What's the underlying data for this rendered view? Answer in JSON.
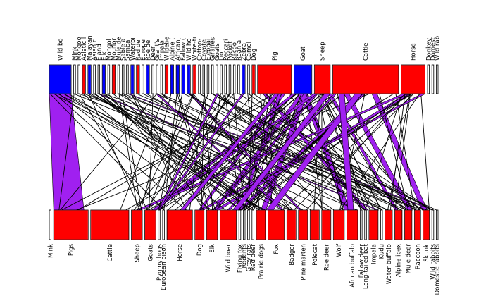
{
  "chart_data": {
    "type": "bipartite-network",
    "title": "",
    "colors": {
      "filled": "#ff0000",
      "highlight": "#0000ff",
      "link_highlight": "#a020f0",
      "edge": "#000000"
    },
    "top_nodes": [
      {
        "label": "Wild bo",
        "weight": 5,
        "color": "#0000ff"
      },
      {
        "label": "Mink",
        "weight": 0,
        "color": ""
      },
      {
        "label": "Mongoo",
        "weight": 0,
        "color": ""
      },
      {
        "label": "Asiatic l",
        "weight": 0.3,
        "color": "#ff0000"
      },
      {
        "label": "Malayan",
        "weight": 0.3,
        "color": "#0000ff"
      },
      {
        "label": "Asian r",
        "weight": 0,
        "color": ""
      },
      {
        "label": "Eland",
        "weight": 0,
        "color": ""
      },
      {
        "label": "Elk",
        "weight": 0.3,
        "color": "#0000ff"
      },
      {
        "label": "Mongol",
        "weight": 0,
        "color": ""
      },
      {
        "label": "Mouflor",
        "weight": 0.3,
        "color": "#ff0000"
      },
      {
        "label": "Mule de",
        "weight": 0,
        "color": ""
      },
      {
        "label": "Sable a",
        "weight": 0,
        "color": ""
      },
      {
        "label": "Sambai",
        "weight": 0,
        "color": ""
      },
      {
        "label": "Waterbi",
        "weight": 0.3,
        "color": "#0000ff"
      },
      {
        "label": "Red de",
        "weight": 0.3,
        "color": "#ff0000"
      },
      {
        "label": "Europe",
        "weight": 0,
        "color": ""
      },
      {
        "label": "Roe de",
        "weight": 0.3,
        "color": "#0000ff"
      },
      {
        "label": "Deer",
        "weight": 0,
        "color": ""
      },
      {
        "label": "Grant's",
        "weight": 0,
        "color": ""
      },
      {
        "label": "Impala",
        "weight": 0,
        "color": ""
      },
      {
        "label": "Wildebe",
        "weight": 0.3,
        "color": "#ff0000"
      },
      {
        "label": "Alpine (",
        "weight": 0.3,
        "color": "#0000ff"
      },
      {
        "label": "African",
        "weight": 0.3,
        "color": "#0000ff"
      },
      {
        "label": "Fallow (",
        "weight": 0.3,
        "color": "#0000ff"
      },
      {
        "label": "Wild ho",
        "weight": 0.3,
        "color": "#0000ff"
      },
      {
        "label": "White-ti",
        "weight": 0.3,
        "color": "#ff0000"
      },
      {
        "label": "Cotton-",
        "weight": 0,
        "color": ""
      },
      {
        "label": "Coyote",
        "weight": 0,
        "color": ""
      },
      {
        "label": "Elephai",
        "weight": 0,
        "color": ""
      },
      {
        "label": "Giraffes",
        "weight": 0,
        "color": ""
      },
      {
        "label": "Goats",
        "weight": 0,
        "color": ""
      },
      {
        "label": "Lion",
        "weight": 0,
        "color": ""
      },
      {
        "label": "Peccari",
        "weight": 0,
        "color": ""
      },
      {
        "label": "Pocket",
        "weight": 0,
        "color": ""
      },
      {
        "label": "Racoo",
        "weight": 0,
        "color": ""
      },
      {
        "label": "Roan a",
        "weight": 0,
        "color": ""
      },
      {
        "label": "Zebra",
        "weight": 0.3,
        "color": "#0000ff"
      },
      {
        "label": "Camel",
        "weight": 0,
        "color": ""
      },
      {
        "label": "Dog",
        "weight": 0.3,
        "color": "#ff0000"
      },
      {
        "label": "Pig",
        "weight": 8,
        "color": "#ff0000"
      },
      {
        "label": "Goat",
        "weight": 4,
        "color": "#0000ff"
      },
      {
        "label": "Sheep",
        "weight": 3.5,
        "color": "#ff0000"
      },
      {
        "label": "Cattle",
        "weight": 16,
        "color": "#ff0000"
      },
      {
        "label": "Horse",
        "weight": 5.5,
        "color": "#ff0000"
      },
      {
        "label": "Donkey",
        "weight": 0,
        "color": ""
      },
      {
        "label": "Domest",
        "weight": 0,
        "color": ""
      },
      {
        "label": "Wild rab",
        "weight": 0,
        "color": ""
      }
    ],
    "bottom_nodes": [
      {
        "label": "Mink",
        "weight": 0,
        "color": ""
      },
      {
        "label": "Pigs",
        "weight": 9,
        "color": "#ff0000"
      },
      {
        "label": "Cattle",
        "weight": 10,
        "color": "#ff0000"
      },
      {
        "label": "Sheep",
        "weight": 2.5,
        "color": "#ff0000"
      },
      {
        "label": "Goats",
        "weight": 2.5,
        "color": "#ff0000"
      },
      {
        "label": "Pygmy hogs",
        "weight": 0,
        "color": ""
      },
      {
        "label": "European bison",
        "weight": 0,
        "color": ""
      },
      {
        "label": "Horse",
        "weight": 6.5,
        "color": "#ff0000"
      },
      {
        "label": "Dog",
        "weight": 2,
        "color": "#ff0000"
      },
      {
        "label": "Elk",
        "weight": 2.5,
        "color": "#ff0000"
      },
      {
        "label": "Wild boar",
        "weight": 4,
        "color": "#ff0000"
      },
      {
        "label": "Flying fox",
        "weight": 0,
        "color": ""
      },
      {
        "label": "Rodents",
        "weight": 0,
        "color": ""
      },
      {
        "label": "Grey rats",
        "weight": 0,
        "color": ""
      },
      {
        "label": "Red deer",
        "weight": 0,
        "color": ""
      },
      {
        "label": "Prairie dogs",
        "weight": 2,
        "color": "#ff0000"
      },
      {
        "label": "Fox",
        "weight": 4,
        "color": "#ff0000"
      },
      {
        "label": "Badger",
        "weight": 2,
        "color": "#ff0000"
      },
      {
        "label": "Pine marten",
        "weight": 2,
        "color": "#ff0000"
      },
      {
        "label": "Polecat",
        "weight": 2,
        "color": "#ff0000"
      },
      {
        "label": "Roe deer",
        "weight": 2,
        "color": "#ff0000"
      },
      {
        "label": "Wolf",
        "weight": 2.5,
        "color": "#ff0000"
      },
      {
        "label": "African buffalo",
        "weight": 2.5,
        "color": "#ff0000"
      },
      {
        "label": "Fallow deer",
        "weight": 0,
        "color": ""
      },
      {
        "label": "Long-tailed bat",
        "weight": 0,
        "color": ""
      },
      {
        "label": "Impala",
        "weight": 2,
        "color": "#ff0000"
      },
      {
        "label": "Kudu",
        "weight": 0,
        "color": ""
      },
      {
        "label": "Water buffalo",
        "weight": 1.5,
        "color": "#ff0000"
      },
      {
        "label": "Alpine ibex",
        "weight": 1.5,
        "color": "#ff0000"
      },
      {
        "label": "Mule deer",
        "weight": 1.5,
        "color": "#ff0000"
      },
      {
        "label": "Raccoon",
        "weight": 1.2,
        "color": "#ff0000"
      },
      {
        "label": "Skunk",
        "weight": 1.2,
        "color": "#ff0000"
      },
      {
        "label": "Wild rabbits",
        "weight": 0,
        "color": ""
      },
      {
        "label": "Domestic rabbits",
        "weight": 0,
        "color": ""
      }
    ]
  }
}
